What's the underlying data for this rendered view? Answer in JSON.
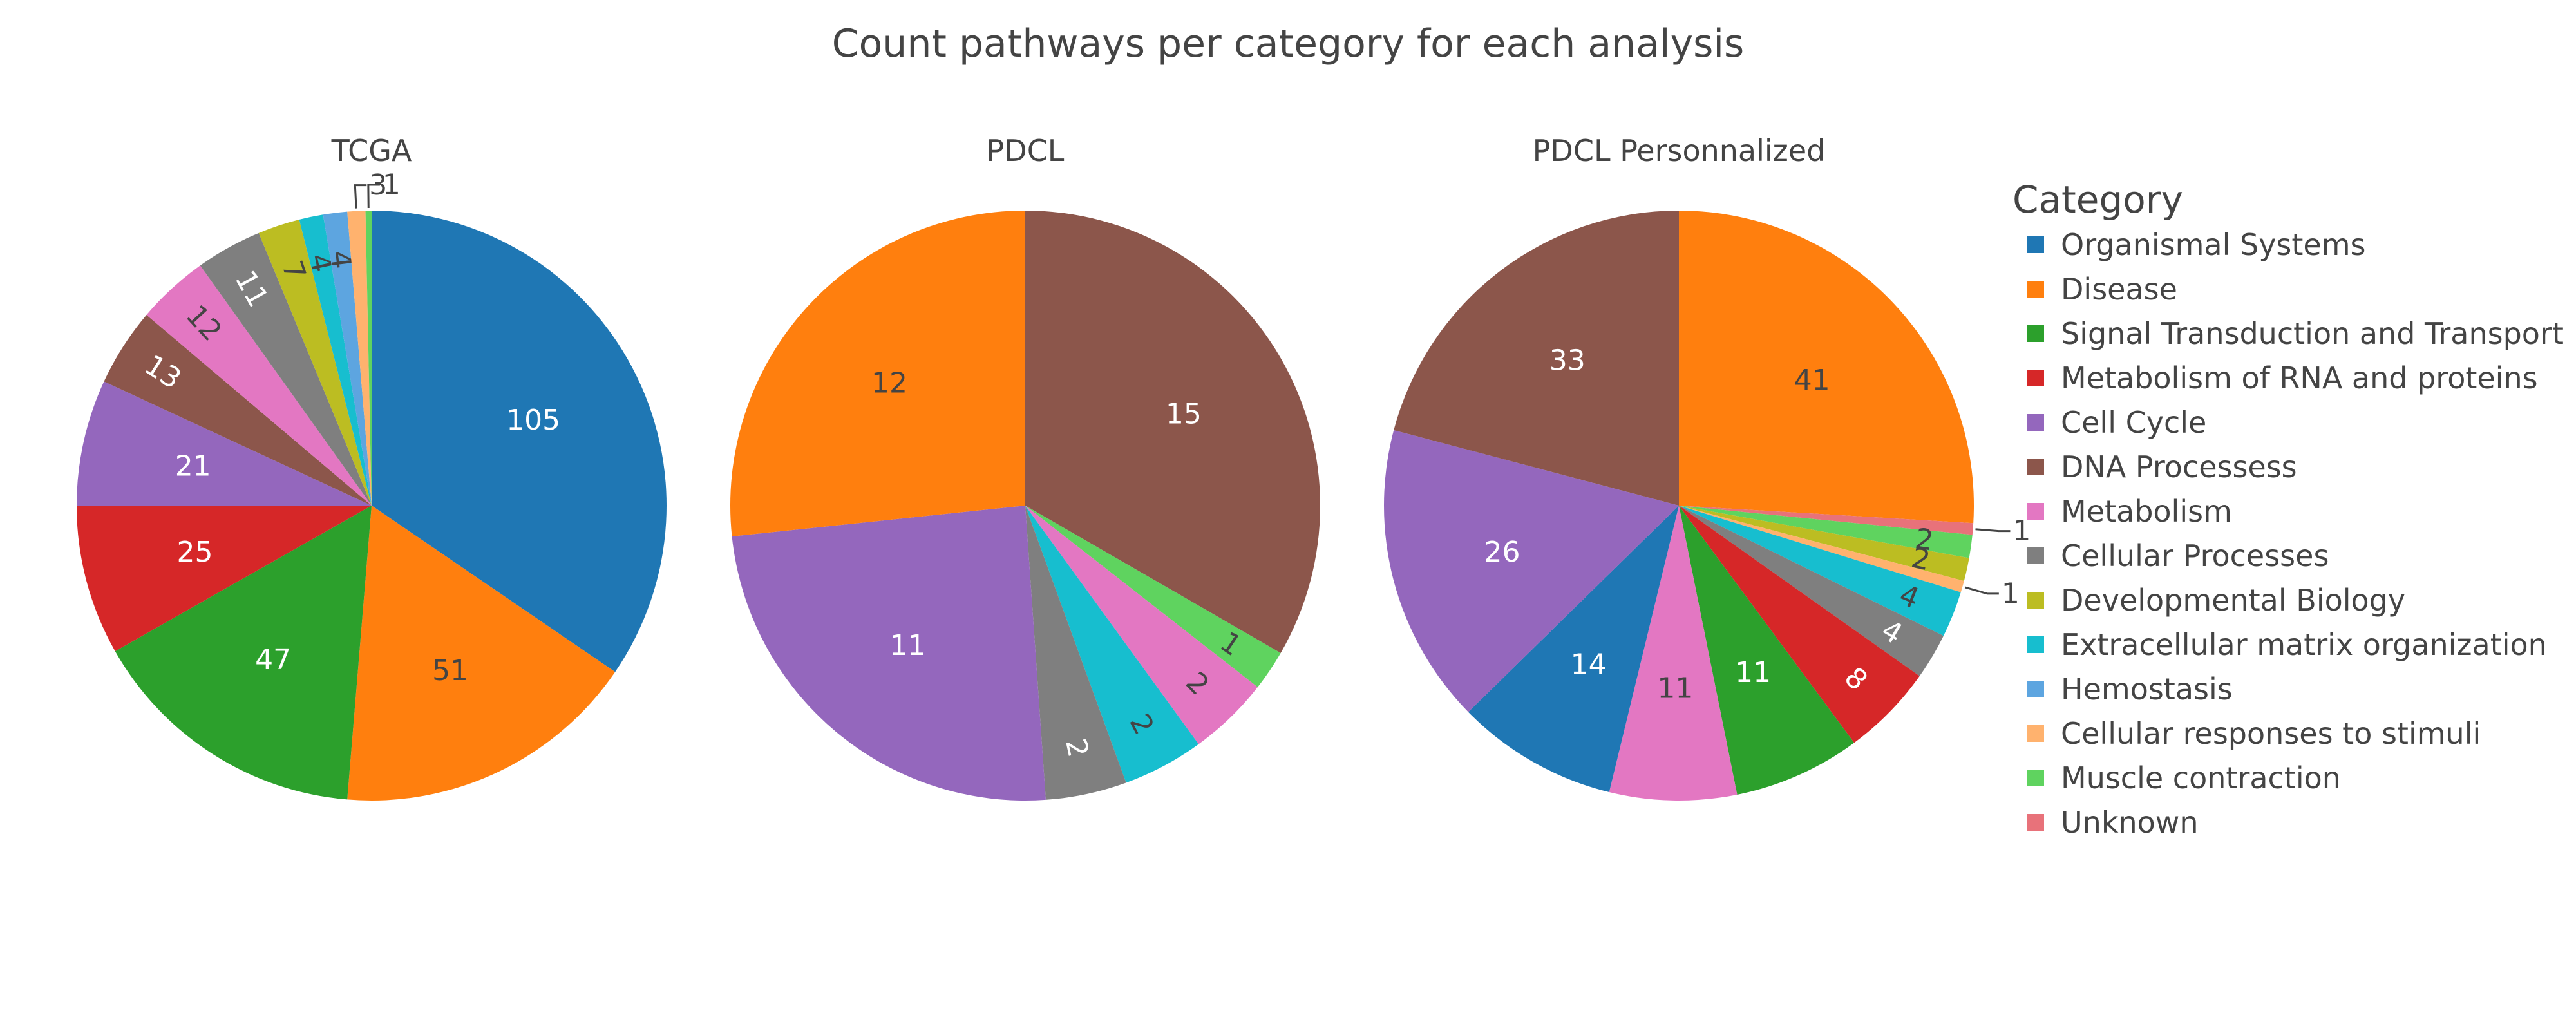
{
  "chart_data": {
    "type": "pie",
    "title": "Count pathways per category for each analysis",
    "legend": {
      "title": "Category",
      "placement": "right"
    },
    "categories": [
      "Organismal Systems",
      "Disease",
      "Signal Transduction and Transport",
      "Metabolism of RNA and proteins",
      "Cell Cycle",
      "DNA Processess",
      "Metabolism",
      "Cellular Processes",
      "Developmental Biology",
      "Extracellular matrix organization",
      "Hemostasis",
      "Cellular responses to stimuli",
      "Muscle contraction",
      "Unknown"
    ],
    "colors": {
      "Organismal Systems": "#1f77b4",
      "Disease": "#ff7f0e",
      "Signal Transduction and Transport": "#2ca02c",
      "Metabolism of RNA and proteins": "#d62728",
      "Cell Cycle": "#9467bd",
      "DNA Processess": "#8c564b",
      "Metabolism": "#e377c2",
      "Cellular Processes": "#7f7f7f",
      "Developmental Biology": "#bcbd22",
      "Extracellular matrix organization": "#17becf",
      "Hemostasis": "#5da5e0",
      "Cellular responses to stimuli": "#ffb26e",
      "Muscle contraction": "#5fd35f",
      "Unknown": "#e8727a"
    },
    "pies": [
      {
        "title": "TCGA",
        "slices": [
          {
            "category": "Organismal Systems",
            "value": 105
          },
          {
            "category": "Disease",
            "value": 51
          },
          {
            "category": "Signal Transduction and Transport",
            "value": 47
          },
          {
            "category": "Metabolism of RNA and proteins",
            "value": 25
          },
          {
            "category": "Cell Cycle",
            "value": 21
          },
          {
            "category": "DNA Processess",
            "value": 13
          },
          {
            "category": "Metabolism",
            "value": 12
          },
          {
            "category": "Cellular Processes",
            "value": 11
          },
          {
            "category": "Developmental Biology",
            "value": 7
          },
          {
            "category": "Extracellular matrix organization",
            "value": 4
          },
          {
            "category": "Hemostasis",
            "value": 4
          },
          {
            "category": "Cellular responses to stimuli",
            "value": 3
          },
          {
            "category": "Muscle contraction",
            "value": 1
          }
        ]
      },
      {
        "title": "PDCL",
        "slices": [
          {
            "category": "DNA Processess",
            "value": 15
          },
          {
            "category": "Muscle contraction",
            "value": 1
          },
          {
            "category": "Metabolism",
            "value": 2
          },
          {
            "category": "Extracellular matrix organization",
            "value": 2
          },
          {
            "category": "Cellular Processes",
            "value": 2
          },
          {
            "category": "Cell Cycle",
            "value": 11
          },
          {
            "category": "Disease",
            "value": 12
          }
        ]
      },
      {
        "title": "PDCL Personnalized",
        "slices": [
          {
            "category": "Disease",
            "value": 41
          },
          {
            "category": "Unknown",
            "value": 1
          },
          {
            "category": "Muscle contraction",
            "value": 2
          },
          {
            "category": "Developmental Biology",
            "value": 2
          },
          {
            "category": "Cellular responses to stimuli",
            "value": 1
          },
          {
            "category": "Extracellular matrix organization",
            "value": 4
          },
          {
            "category": "Cellular Processes",
            "value": 4
          },
          {
            "category": "Metabolism of RNA and proteins",
            "value": 8
          },
          {
            "category": "Signal Transduction and Transport",
            "value": 11
          },
          {
            "category": "Metabolism",
            "value": 11
          },
          {
            "category": "Organismal Systems",
            "value": 14
          },
          {
            "category": "Cell Cycle",
            "value": 26
          },
          {
            "category": "DNA Processess",
            "value": 33
          }
        ]
      }
    ]
  }
}
